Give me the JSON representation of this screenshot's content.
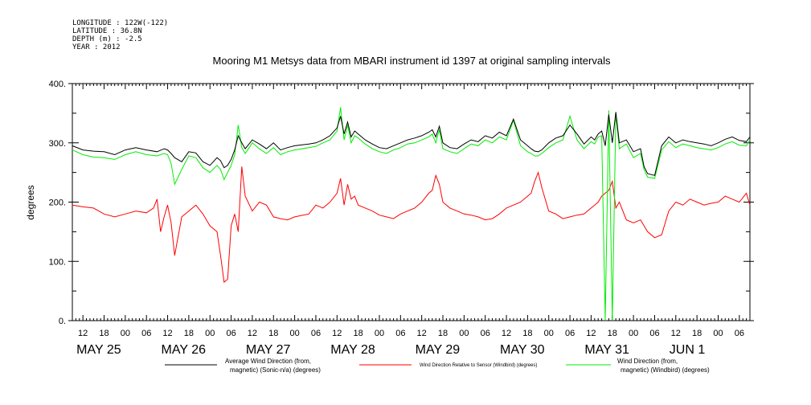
{
  "header": {
    "longitude": "LONGITUDE : 122W(-122)",
    "latitude": "LATITUDE : 36.8N",
    "depth": "DEPTH (m) : -2.5",
    "year": "YEAR : 2012"
  },
  "chart_data": {
    "type": "line",
    "title": "Mooring M1 Metsys data from MBARI instrument id 1397 at original sampling intervals",
    "ylabel": "degrees",
    "ylim": [
      0,
      400
    ],
    "yticks": [
      "0.",
      "100.",
      "200.",
      "300.",
      "400."
    ],
    "x_unit": "hours since May 25 00:00, 2012",
    "xlim": [
      9,
      201
    ],
    "hour_ticks": [
      {
        "h": 12,
        "label": "12"
      },
      {
        "h": 18,
        "label": "18"
      },
      {
        "h": 24,
        "label": "00"
      },
      {
        "h": 30,
        "label": "06"
      },
      {
        "h": 36,
        "label": "12"
      },
      {
        "h": 42,
        "label": "18"
      },
      {
        "h": 48,
        "label": "00"
      },
      {
        "h": 54,
        "label": "06"
      },
      {
        "h": 60,
        "label": "12"
      },
      {
        "h": 66,
        "label": "18"
      },
      {
        "h": 72,
        "label": "00"
      },
      {
        "h": 78,
        "label": "06"
      },
      {
        "h": 84,
        "label": "12"
      },
      {
        "h": 90,
        "label": "18"
      },
      {
        "h": 96,
        "label": "00"
      },
      {
        "h": 102,
        "label": "06"
      },
      {
        "h": 108,
        "label": "12"
      },
      {
        "h": 114,
        "label": "18"
      },
      {
        "h": 120,
        "label": "00"
      },
      {
        "h": 126,
        "label": "06"
      },
      {
        "h": 132,
        "label": "12"
      },
      {
        "h": 138,
        "label": "18"
      },
      {
        "h": 144,
        "label": "00"
      },
      {
        "h": 150,
        "label": "06"
      },
      {
        "h": 156,
        "label": "12"
      },
      {
        "h": 162,
        "label": "18"
      },
      {
        "h": 168,
        "label": "00"
      },
      {
        "h": 174,
        "label": "06"
      },
      {
        "h": 180,
        "label": "12"
      },
      {
        "h": 186,
        "label": "18"
      },
      {
        "h": 192,
        "label": "00"
      },
      {
        "h": 198,
        "label": "06"
      }
    ],
    "date_ticks": [
      {
        "h": 12,
        "label": "MAY 25"
      },
      {
        "h": 36,
        "label": "MAY 26"
      },
      {
        "h": 60,
        "label": "MAY 27"
      },
      {
        "h": 84,
        "label": "MAY 28"
      },
      {
        "h": 108,
        "label": "MAY 29"
      },
      {
        "h": 132,
        "label": "MAY 30"
      },
      {
        "h": 156,
        "label": "MAY 31"
      },
      {
        "h": 180,
        "label": "JUN 1"
      }
    ],
    "series": [
      {
        "name_line1": "Average Wind Direction (from,",
        "name_line2": "magnetic) (Sonic-n/a) (degrees)",
        "color": "#000000",
        "x": [
          9,
          12,
          15,
          18,
          21,
          24,
          27,
          30,
          33,
          35,
          36,
          37,
          38,
          40,
          42,
          44,
          46,
          48,
          50,
          51,
          52,
          53,
          54,
          55,
          56,
          57,
          58,
          60,
          62,
          64,
          66,
          68,
          70,
          72,
          76,
          78,
          80,
          82,
          84,
          85,
          86,
          87,
          88,
          89,
          90,
          92,
          94,
          96,
          98,
          100,
          102,
          104,
          106,
          108,
          110,
          111,
          112,
          113,
          114,
          116,
          118,
          120,
          122,
          124,
          126,
          128,
          130,
          132,
          134,
          136,
          138,
          139,
          140,
          141,
          142,
          144,
          146,
          148,
          150,
          152,
          154,
          156,
          157,
          158,
          159,
          160,
          161,
          162,
          163,
          164,
          166,
          168,
          170,
          171,
          172,
          174,
          176,
          178,
          180,
          182,
          184,
          186,
          188,
          190,
          192,
          194,
          196,
          198,
          200,
          201
        ],
        "y": [
          295,
          288,
          286,
          285,
          280,
          288,
          292,
          288,
          285,
          290,
          288,
          282,
          275,
          268,
          285,
          283,
          268,
          262,
          275,
          270,
          258,
          262,
          272,
          288,
          312,
          300,
          290,
          305,
          298,
          290,
          300,
          288,
          292,
          295,
          298,
          300,
          305,
          312,
          325,
          345,
          315,
          335,
          310,
          320,
          315,
          305,
          298,
          292,
          290,
          295,
          300,
          305,
          308,
          312,
          318,
          322,
          310,
          328,
          300,
          292,
          290,
          298,
          305,
          302,
          312,
          308,
          318,
          312,
          340,
          305,
          295,
          290,
          286,
          285,
          288,
          300,
          308,
          312,
          330,
          315,
          298,
          310,
          305,
          315,
          320,
          295,
          348,
          300,
          352,
          300,
          305,
          285,
          290,
          260,
          248,
          245,
          295,
          310,
          300,
          305,
          302,
          300,
          298,
          295,
          300,
          306,
          310,
          304,
          302,
          310
        ]
      },
      {
        "name_line1": "Wind Direction Relative to Sensor (Windbird) (degrees)",
        "name_line2": "",
        "color": "#ff0000",
        "x": [
          9,
          12,
          15,
          18,
          21,
          24,
          27,
          30,
          32,
          33,
          34,
          35,
          36,
          37,
          38,
          40,
          42,
          44,
          46,
          47,
          48,
          50,
          51,
          52,
          53,
          54,
          55,
          56,
          57,
          58,
          60,
          62,
          64,
          66,
          68,
          70,
          72,
          76,
          78,
          80,
          82,
          84,
          85,
          86,
          87,
          88,
          89,
          90,
          92,
          94,
          96,
          98,
          100,
          102,
          104,
          106,
          108,
          110,
          111,
          112,
          113,
          114,
          116,
          118,
          120,
          122,
          124,
          126,
          128,
          130,
          132,
          134,
          136,
          138,
          139,
          140,
          141,
          142,
          144,
          146,
          148,
          150,
          152,
          154,
          156,
          157,
          158,
          159,
          160,
          161,
          162,
          163,
          164,
          166,
          168,
          170,
          171,
          172,
          174,
          176,
          178,
          180,
          182,
          184,
          186,
          188,
          190,
          192,
          194,
          196,
          198,
          200,
          201
        ],
        "y": [
          195,
          192,
          190,
          180,
          175,
          180,
          185,
          182,
          190,
          205,
          150,
          175,
          195,
          165,
          110,
          175,
          185,
          195,
          180,
          170,
          160,
          150,
          110,
          65,
          70,
          160,
          180,
          150,
          260,
          210,
          185,
          200,
          195,
          175,
          172,
          170,
          175,
          180,
          195,
          190,
          200,
          215,
          240,
          195,
          230,
          205,
          210,
          195,
          190,
          185,
          178,
          175,
          172,
          180,
          185,
          190,
          200,
          215,
          220,
          245,
          230,
          200,
          190,
          185,
          180,
          178,
          175,
          170,
          172,
          180,
          190,
          195,
          200,
          210,
          215,
          235,
          250,
          225,
          185,
          180,
          172,
          175,
          178,
          180,
          190,
          195,
          200,
          210,
          215,
          220,
          235,
          190,
          200,
          170,
          165,
          170,
          160,
          150,
          140,
          145,
          185,
          200,
          195,
          205,
          200,
          195,
          198,
          200,
          210,
          205,
          200,
          215,
          195
        ]
      },
      {
        "name_line1": "Wind Direction (from,",
        "name_line2": "magnetic) (Windbird) (degrees)",
        "color": "#00ee00",
        "x": [
          9,
          12,
          15,
          18,
          21,
          24,
          27,
          30,
          33,
          35,
          36,
          37,
          38,
          40,
          42,
          44,
          46,
          48,
          50,
          51,
          52,
          53,
          54,
          55,
          56,
          57,
          58,
          60,
          62,
          64,
          66,
          68,
          70,
          72,
          76,
          78,
          80,
          82,
          84,
          85,
          86,
          87,
          88,
          89,
          90,
          92,
          94,
          96,
          98,
          100,
          102,
          104,
          106,
          108,
          110,
          111,
          112,
          113,
          114,
          116,
          118,
          120,
          122,
          124,
          126,
          128,
          130,
          132,
          134,
          136,
          138,
          139,
          140,
          141,
          142,
          144,
          146,
          148,
          150,
          152,
          154,
          156,
          157,
          158,
          159,
          160,
          161,
          162,
          163,
          164,
          166,
          168,
          170,
          171,
          172,
          174,
          176,
          178,
          180,
          182,
          184,
          186,
          188,
          190,
          192,
          194,
          196,
          198,
          200,
          201
        ],
        "y": [
          288,
          280,
          276,
          275,
          272,
          280,
          285,
          280,
          278,
          282,
          280,
          265,
          230,
          255,
          278,
          275,
          258,
          250,
          262,
          255,
          238,
          250,
          262,
          280,
          330,
          292,
          282,
          300,
          290,
          282,
          292,
          280,
          285,
          288,
          292,
          294,
          300,
          305,
          320,
          360,
          305,
          330,
          300,
          312,
          308,
          298,
          290,
          285,
          282,
          288,
          292,
          298,
          300,
          305,
          310,
          315,
          300,
          322,
          290,
          285,
          282,
          290,
          298,
          295,
          305,
          300,
          310,
          305,
          338,
          295,
          285,
          282,
          278,
          278,
          282,
          292,
          300,
          305,
          345,
          305,
          290,
          302,
          298,
          310,
          312,
          0,
          355,
          0,
          350,
          290,
          298,
          275,
          282,
          255,
          242,
          240,
          288,
          302,
          292,
          298,
          295,
          292,
          290,
          288,
          292,
          298,
          302,
          296,
          295,
          305
        ]
      }
    ],
    "grid": false,
    "legend": "bottom"
  }
}
